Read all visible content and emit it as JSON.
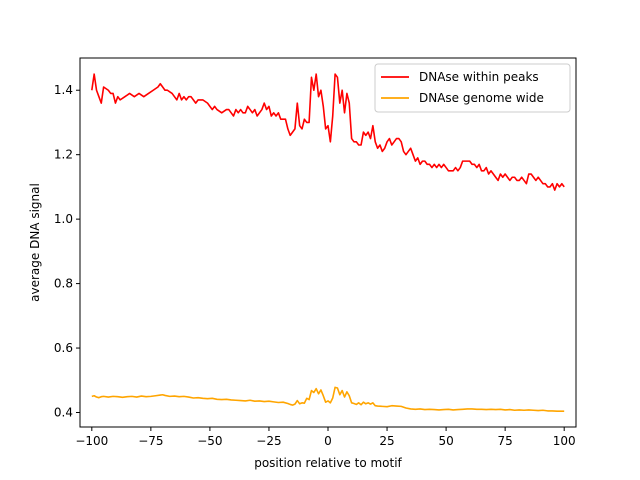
{
  "chart_data": {
    "type": "line",
    "xlabel": "position relative to motif",
    "ylabel": "average DNA signal",
    "xlim": [
      -105,
      105
    ],
    "ylim": [
      0.355,
      1.5
    ],
    "grid": false,
    "legend_position": "top-right",
    "x_ticks": [
      {
        "value": -100,
        "label": "−100"
      },
      {
        "value": -75,
        "label": "−75"
      },
      {
        "value": -50,
        "label": "−50"
      },
      {
        "value": -25,
        "label": "−25"
      },
      {
        "value": 0,
        "label": "0"
      },
      {
        "value": 25,
        "label": "25"
      },
      {
        "value": 50,
        "label": "50"
      },
      {
        "value": 75,
        "label": "75"
      },
      {
        "value": 100,
        "label": "100"
      }
    ],
    "y_ticks": [
      {
        "value": 0.4,
        "label": "0.4"
      },
      {
        "value": 0.6,
        "label": "0.6"
      },
      {
        "value": 0.8,
        "label": "0.8"
      },
      {
        "value": 1.0,
        "label": "1.0"
      },
      {
        "value": 1.2,
        "label": "1.2"
      },
      {
        "value": 1.4,
        "label": "1.4"
      }
    ],
    "series": [
      {
        "name": "DNAse within peaks",
        "color": "#ff0000",
        "points": [
          [
            -100,
            1.4
          ],
          [
            -99,
            1.45
          ],
          [
            -98,
            1.4
          ],
          [
            -97,
            1.38
          ],
          [
            -96,
            1.36
          ],
          [
            -95,
            1.41
          ],
          [
            -93,
            1.4
          ],
          [
            -92,
            1.39
          ],
          [
            -91,
            1.39
          ],
          [
            -90,
            1.36
          ],
          [
            -89,
            1.38
          ],
          [
            -88,
            1.37
          ],
          [
            -86,
            1.38
          ],
          [
            -84,
            1.39
          ],
          [
            -82,
            1.38
          ],
          [
            -80,
            1.39
          ],
          [
            -78,
            1.38
          ],
          [
            -76,
            1.39
          ],
          [
            -74,
            1.4
          ],
          [
            -72,
            1.41
          ],
          [
            -71,
            1.42
          ],
          [
            -70,
            1.41
          ],
          [
            -69,
            1.4
          ],
          [
            -68,
            1.4
          ],
          [
            -66,
            1.39
          ],
          [
            -65,
            1.38
          ],
          [
            -64,
            1.37
          ],
          [
            -63,
            1.39
          ],
          [
            -62,
            1.37
          ],
          [
            -61,
            1.38
          ],
          [
            -60,
            1.37
          ],
          [
            -59,
            1.38
          ],
          [
            -58,
            1.38
          ],
          [
            -57,
            1.37
          ],
          [
            -56,
            1.36
          ],
          [
            -55,
            1.37
          ],
          [
            -53,
            1.37
          ],
          [
            -51,
            1.36
          ],
          [
            -50,
            1.35
          ],
          [
            -49,
            1.34
          ],
          [
            -48,
            1.35
          ],
          [
            -47,
            1.34
          ],
          [
            -45,
            1.33
          ],
          [
            -43,
            1.34
          ],
          [
            -42,
            1.34
          ],
          [
            -41,
            1.33
          ],
          [
            -40,
            1.32
          ],
          [
            -39,
            1.34
          ],
          [
            -38,
            1.33
          ],
          [
            -37,
            1.34
          ],
          [
            -36,
            1.33
          ],
          [
            -35,
            1.33
          ],
          [
            -34,
            1.35
          ],
          [
            -33,
            1.34
          ],
          [
            -32,
            1.33
          ],
          [
            -31,
            1.34
          ],
          [
            -30,
            1.32
          ],
          [
            -28,
            1.34
          ],
          [
            -27,
            1.36
          ],
          [
            -26,
            1.34
          ],
          [
            -25,
            1.35
          ],
          [
            -24,
            1.32
          ],
          [
            -23,
            1.33
          ],
          [
            -22,
            1.32
          ],
          [
            -21,
            1.33
          ],
          [
            -20,
            1.31
          ],
          [
            -18,
            1.31
          ],
          [
            -17,
            1.28
          ],
          [
            -16,
            1.26
          ],
          [
            -15,
            1.27
          ],
          [
            -14,
            1.28
          ],
          [
            -13,
            1.36
          ],
          [
            -12,
            1.29
          ],
          [
            -11,
            1.28
          ],
          [
            -10,
            1.31
          ],
          [
            -9,
            1.3
          ],
          [
            -8,
            1.3
          ],
          [
            -7,
            1.44
          ],
          [
            -6,
            1.4
          ],
          [
            -5,
            1.45
          ],
          [
            -4,
            1.38
          ],
          [
            -3,
            1.4
          ],
          [
            -2,
            1.35
          ],
          [
            -1,
            1.28
          ],
          [
            0,
            1.29
          ],
          [
            1,
            1.24
          ],
          [
            2,
            1.32
          ],
          [
            3,
            1.45
          ],
          [
            4,
            1.44
          ],
          [
            5,
            1.36
          ],
          [
            6,
            1.4
          ],
          [
            7,
            1.33
          ],
          [
            8,
            1.39
          ],
          [
            9,
            1.36
          ],
          [
            10,
            1.25
          ],
          [
            11,
            1.24
          ],
          [
            12,
            1.24
          ],
          [
            13,
            1.23
          ],
          [
            14,
            1.23
          ],
          [
            15,
            1.27
          ],
          [
            16,
            1.26
          ],
          [
            17,
            1.27
          ],
          [
            18,
            1.25
          ],
          [
            19,
            1.29
          ],
          [
            20,
            1.24
          ],
          [
            21,
            1.22
          ],
          [
            22,
            1.23
          ],
          [
            23,
            1.21
          ],
          [
            24,
            1.22
          ],
          [
            25,
            1.24
          ],
          [
            26,
            1.25
          ],
          [
            27,
            1.23
          ],
          [
            28,
            1.24
          ],
          [
            29,
            1.25
          ],
          [
            30,
            1.25
          ],
          [
            31,
            1.24
          ],
          [
            32,
            1.21
          ],
          [
            33,
            1.2
          ],
          [
            34,
            1.21
          ],
          [
            35,
            1.22
          ],
          [
            36,
            1.2
          ],
          [
            37,
            1.18
          ],
          [
            38,
            1.19
          ],
          [
            39,
            1.17
          ],
          [
            40,
            1.18
          ],
          [
            41,
            1.18
          ],
          [
            42,
            1.17
          ],
          [
            43,
            1.17
          ],
          [
            44,
            1.16
          ],
          [
            45,
            1.17
          ],
          [
            46,
            1.16
          ],
          [
            47,
            1.17
          ],
          [
            48,
            1.16
          ],
          [
            49,
            1.17
          ],
          [
            50,
            1.16
          ],
          [
            51,
            1.15
          ],
          [
            52,
            1.15
          ],
          [
            53,
            1.15
          ],
          [
            54,
            1.16
          ],
          [
            55,
            1.15
          ],
          [
            56,
            1.16
          ],
          [
            57,
            1.18
          ],
          [
            58,
            1.18
          ],
          [
            59,
            1.18
          ],
          [
            60,
            1.18
          ],
          [
            61,
            1.17
          ],
          [
            62,
            1.17
          ],
          [
            63,
            1.16
          ],
          [
            64,
            1.17
          ],
          [
            65,
            1.15
          ],
          [
            66,
            1.15
          ],
          [
            67,
            1.16
          ],
          [
            68,
            1.14
          ],
          [
            69,
            1.15
          ],
          [
            70,
            1.14
          ],
          [
            71,
            1.13
          ],
          [
            72,
            1.12
          ],
          [
            73,
            1.14
          ],
          [
            74,
            1.13
          ],
          [
            75,
            1.14
          ],
          [
            76,
            1.13
          ],
          [
            77,
            1.12
          ],
          [
            78,
            1.13
          ],
          [
            79,
            1.13
          ],
          [
            80,
            1.12
          ],
          [
            81,
            1.12
          ],
          [
            82,
            1.13
          ],
          [
            83,
            1.12
          ],
          [
            84,
            1.11
          ],
          [
            85,
            1.14
          ],
          [
            86,
            1.14
          ],
          [
            87,
            1.13
          ],
          [
            88,
            1.12
          ],
          [
            89,
            1.13
          ],
          [
            90,
            1.12
          ],
          [
            91,
            1.11
          ],
          [
            92,
            1.11
          ],
          [
            93,
            1.1
          ],
          [
            94,
            1.1
          ],
          [
            95,
            1.11
          ],
          [
            96,
            1.09
          ],
          [
            97,
            1.11
          ],
          [
            98,
            1.1
          ],
          [
            99,
            1.11
          ],
          [
            100,
            1.1
          ]
        ]
      },
      {
        "name": "DNAse genome wide",
        "color": "#ffa500",
        "points": [
          [
            -100,
            0.45
          ],
          [
            -99,
            0.452
          ],
          [
            -98,
            0.448
          ],
          [
            -97,
            0.446
          ],
          [
            -96,
            0.449
          ],
          [
            -95,
            0.45
          ],
          [
            -93,
            0.448
          ],
          [
            -91,
            0.45
          ],
          [
            -89,
            0.449
          ],
          [
            -87,
            0.447
          ],
          [
            -85,
            0.449
          ],
          [
            -83,
            0.45
          ],
          [
            -81,
            0.448
          ],
          [
            -79,
            0.451
          ],
          [
            -77,
            0.449
          ],
          [
            -75,
            0.45
          ],
          [
            -73,
            0.452
          ],
          [
            -71,
            0.454
          ],
          [
            -70,
            0.455
          ],
          [
            -69,
            0.453
          ],
          [
            -67,
            0.45
          ],
          [
            -65,
            0.451
          ],
          [
            -63,
            0.449
          ],
          [
            -61,
            0.45
          ],
          [
            -59,
            0.448
          ],
          [
            -57,
            0.445
          ],
          [
            -55,
            0.446
          ],
          [
            -53,
            0.444
          ],
          [
            -51,
            0.443
          ],
          [
            -49,
            0.444
          ],
          [
            -47,
            0.441
          ],
          [
            -45,
            0.44
          ],
          [
            -43,
            0.441
          ],
          [
            -41,
            0.439
          ],
          [
            -39,
            0.438
          ],
          [
            -37,
            0.437
          ],
          [
            -35,
            0.436
          ],
          [
            -33,
            0.438
          ],
          [
            -31,
            0.435
          ],
          [
            -29,
            0.436
          ],
          [
            -27,
            0.434
          ],
          [
            -25,
            0.435
          ],
          [
            -23,
            0.433
          ],
          [
            -21,
            0.431
          ],
          [
            -19,
            0.432
          ],
          [
            -17,
            0.428
          ],
          [
            -16,
            0.425
          ],
          [
            -15,
            0.423
          ],
          [
            -14,
            0.426
          ],
          [
            -13,
            0.437
          ],
          [
            -12,
            0.427
          ],
          [
            -11,
            0.43
          ],
          [
            -10,
            0.429
          ],
          [
            -9,
            0.444
          ],
          [
            -8,
            0.44
          ],
          [
            -7,
            0.468
          ],
          [
            -6,
            0.462
          ],
          [
            -5,
            0.474
          ],
          [
            -4,
            0.458
          ],
          [
            -3,
            0.47
          ],
          [
            -2,
            0.452
          ],
          [
            -1,
            0.432
          ],
          [
            0,
            0.436
          ],
          [
            1,
            0.43
          ],
          [
            2,
            0.445
          ],
          [
            3,
            0.478
          ],
          [
            4,
            0.476
          ],
          [
            5,
            0.455
          ],
          [
            6,
            0.468
          ],
          [
            7,
            0.448
          ],
          [
            8,
            0.464
          ],
          [
            9,
            0.452
          ],
          [
            10,
            0.43
          ],
          [
            11,
            0.428
          ],
          [
            12,
            0.425
          ],
          [
            13,
            0.43
          ],
          [
            14,
            0.424
          ],
          [
            15,
            0.432
          ],
          [
            16,
            0.427
          ],
          [
            17,
            0.43
          ],
          [
            18,
            0.426
          ],
          [
            19,
            0.43
          ],
          [
            20,
            0.421
          ],
          [
            21,
            0.42
          ],
          [
            23,
            0.419
          ],
          [
            25,
            0.418
          ],
          [
            27,
            0.421
          ],
          [
            29,
            0.42
          ],
          [
            31,
            0.419
          ],
          [
            33,
            0.414
          ],
          [
            35,
            0.411
          ],
          [
            37,
            0.41
          ],
          [
            39,
            0.411
          ],
          [
            41,
            0.409
          ],
          [
            43,
            0.41
          ],
          [
            45,
            0.409
          ],
          [
            47,
            0.408
          ],
          [
            49,
            0.409
          ],
          [
            51,
            0.41
          ],
          [
            53,
            0.408
          ],
          [
            55,
            0.409
          ],
          [
            57,
            0.41
          ],
          [
            59,
            0.411
          ],
          [
            61,
            0.411
          ],
          [
            63,
            0.41
          ],
          [
            65,
            0.41
          ],
          [
            67,
            0.409
          ],
          [
            69,
            0.41
          ],
          [
            71,
            0.409
          ],
          [
            73,
            0.41
          ],
          [
            75,
            0.408
          ],
          [
            77,
            0.409
          ],
          [
            79,
            0.407
          ],
          [
            81,
            0.408
          ],
          [
            83,
            0.407
          ],
          [
            85,
            0.408
          ],
          [
            87,
            0.407
          ],
          [
            89,
            0.406
          ],
          [
            91,
            0.407
          ],
          [
            93,
            0.405
          ],
          [
            95,
            0.405
          ],
          [
            97,
            0.404
          ],
          [
            99,
            0.404
          ],
          [
            100,
            0.404
          ]
        ]
      }
    ]
  }
}
